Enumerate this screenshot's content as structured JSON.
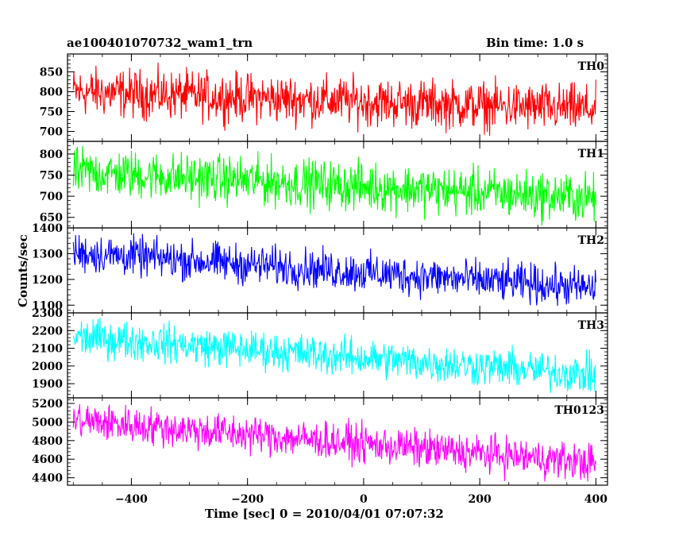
{
  "header": {
    "title": "ae100401070732_wam1_trn",
    "bin_time": "Bin time: 1.0 s"
  },
  "chart_data": {
    "type": "line",
    "title": "ae100401070732_wam1_trn",
    "subtitle": "Bin time: 1.0 s",
    "xlabel": "Time [sec] 0 = 2010/04/01 07:07:32",
    "ylabel": "Counts/sec",
    "xlim": [
      -510,
      420
    ],
    "x_range_data": [
      -500,
      400
    ],
    "xticks": [
      -400,
      -200,
      0,
      200,
      400
    ],
    "grid": false,
    "panels": [
      {
        "name": "TH0",
        "color": "#ff0000",
        "ylim": [
          675,
          895
        ],
        "yticks": [
          700,
          750,
          800,
          850
        ],
        "start_mean": 800,
        "end_mean": 755,
        "noise_amp": 48
      },
      {
        "name": "TH1",
        "color": "#00ff00",
        "ylim": [
          625,
          830
        ],
        "yticks": [
          650,
          700,
          750,
          800
        ],
        "start_mean": 758,
        "end_mean": 695,
        "noise_amp": 45
      },
      {
        "name": "TH2",
        "color": "#0000ff",
        "ylim": [
          1070,
          1400
        ],
        "yticks": [
          1100,
          1200,
          1300,
          1400
        ],
        "start_mean": 1305,
        "end_mean": 1165,
        "noise_amp": 60
      },
      {
        "name": "TH3",
        "color": "#00ffff",
        "ylim": [
          1820,
          2300
        ],
        "yticks": [
          1900,
          2000,
          2100,
          2200,
          2300
        ],
        "start_mean": 2165,
        "end_mean": 1950,
        "noise_amp": 85
      },
      {
        "name": "TH0123",
        "color": "#ff00ff",
        "ylim": [
          4320,
          5260
        ],
        "yticks": [
          4400,
          4600,
          4800,
          5000,
          5200
        ],
        "start_mean": 5020,
        "end_mean": 4560,
        "noise_amp": 160
      }
    ]
  }
}
